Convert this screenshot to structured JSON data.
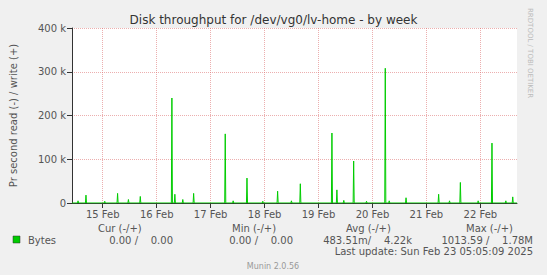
{
  "chart_data": {
    "type": "line",
    "title": "Disk throughput for /dev/vg0/lv-home - by week",
    "ylabel": "Pr second read (-) / write (+)",
    "x": [
      14.93,
      15.032,
      15.042,
      15.052,
      15.179,
      15.189,
      15.199,
      15.527,
      15.537,
      15.547,
      15.765,
      15.775,
      15.785,
      15.966,
      15.976,
      15.986,
      16.186,
      16.196,
      16.206,
      16.772,
      16.782,
      16.792,
      16.827,
      16.837,
      16.847,
      16.974,
      16.984,
      16.994,
      17.175,
      17.185,
      17.195,
      17.761,
      17.771,
      17.781,
      17.908,
      17.918,
      17.928,
      18.164,
      18.174,
      18.184,
      18.457,
      18.467,
      18.477,
      18.732,
      18.742,
      18.752,
      18.988,
      18.998,
      19.008,
      19.153,
      19.163,
      19.173,
      19.739,
      19.749,
      19.759,
      19.831,
      19.841,
      19.851,
      19.959,
      19.969,
      19.979,
      20.142,
      20.152,
      20.162,
      20.38,
      20.39,
      20.4,
      20.728,
      20.738,
      20.748,
      20.801,
      20.811,
      20.821,
      21.113,
      21.123,
      21.133,
      21.717,
      21.727,
      21.737,
      21.919,
      21.929,
      21.939,
      22.12,
      22.13,
      22.14,
      22.45,
      22.46,
      22.47,
      22.706,
      22.716,
      22.726,
      22.963,
      22.973,
      22.983,
      23.091,
      23.101,
      23.111,
      23.18
    ],
    "series": [
      {
        "name": "Bytes",
        "color": "#00cc00",
        "values": [
          0,
          0,
          5000,
          0,
          0,
          18000,
          0,
          0,
          4000,
          0,
          0,
          22000,
          0,
          0,
          8000,
          0,
          0,
          15000,
          0,
          0,
          240000,
          0,
          0,
          20000,
          0,
          0,
          8000,
          0,
          0,
          22000,
          0,
          0,
          158000,
          0,
          0,
          5000,
          0,
          0,
          57000,
          0,
          0,
          4000,
          0,
          0,
          27000,
          0,
          0,
          5000,
          0,
          0,
          44000,
          0,
          0,
          160000,
          0,
          0,
          30000,
          0,
          0,
          6000,
          0,
          0,
          96000,
          0,
          0,
          4000,
          0,
          0,
          308000,
          0,
          0,
          5000,
          0,
          0,
          12000,
          0,
          0,
          20000,
          0,
          0,
          5000,
          0,
          0,
          47000,
          0,
          0,
          5000,
          0,
          0,
          137000,
          0,
          0,
          5000,
          0,
          0,
          14000,
          0,
          0
        ]
      }
    ],
    "xlim": [
      14.93,
      23.18
    ],
    "xticks": [
      {
        "value": 15.5,
        "label": "15 Feb"
      },
      {
        "value": 16.5,
        "label": "16 Feb"
      },
      {
        "value": 17.5,
        "label": "17 Feb"
      },
      {
        "value": 18.5,
        "label": "18 Feb"
      },
      {
        "value": 19.5,
        "label": "19 Feb"
      },
      {
        "value": 20.5,
        "label": "20 Feb"
      },
      {
        "value": 21.5,
        "label": "21 Feb"
      },
      {
        "value": 22.5,
        "label": "22 Feb"
      }
    ],
    "ylim": [
      0,
      400000
    ],
    "yticks": [
      0,
      {
        "value": 100000,
        "label": "100 k"
      },
      {
        "value": 200000,
        "label": "200 k"
      },
      {
        "value": 300000,
        "label": "300 k"
      },
      {
        "value": 400000,
        "label": "400 k"
      }
    ],
    "grid": true,
    "summary": {
      "headers": [
        "Cur (-/+)",
        "Min (-/+)",
        "Avg (-/+)",
        "Max (-/+)"
      ],
      "rows": [
        {
          "name": "Bytes",
          "values": [
            "0.00 /    0.00",
            "0.00 /    0.00",
            "483.51m/    4.22k",
            "1013.59 /    1.78M"
          ]
        }
      ]
    },
    "annotations": [
      "Last update: Sun Feb 23 05:05:09 2025",
      "Munin 2.0.56",
      "RRDTOOL / TOBI OETIKER"
    ]
  }
}
